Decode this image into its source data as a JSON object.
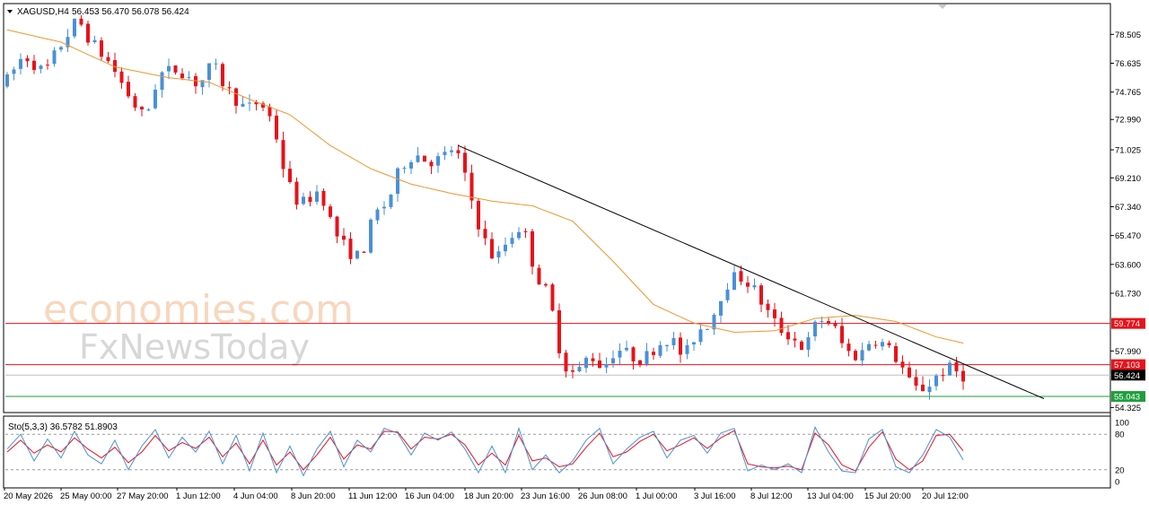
{
  "header": {
    "title": "XAGUSD,H4",
    "ohlc": "56.453 56.470 56.078 56.424"
  },
  "watermark": {
    "line1": "economies.com",
    "line2": "FxNewsToday"
  },
  "colors": {
    "bull": "#4a90d9",
    "bear": "#e8121a",
    "ma": "#f0962a",
    "trendline": "#000000",
    "resistance": "#e8121a",
    "support": "#1e9e3c",
    "stoch_k": "#4a90d9",
    "stoch_d": "#e8121a"
  },
  "chart_data": [
    {
      "type": "candlestick",
      "symbol": "XAGUSD",
      "timeframe": "H4",
      "ylim": [
        54.0,
        80.5
      ],
      "y_ticks": [
        "78.505",
        "76.635",
        "74.765",
        "72.990",
        "71.025",
        "69.210",
        "67.340",
        "65.470",
        "63.600",
        "61.730",
        "57.990",
        "54.325"
      ],
      "x_ticks": [
        "20 May 2026",
        "25 May 00:00",
        "27 May 20:00",
        "1 Jun 12:00",
        "4 Jun 04:00",
        "8 Jun 20:00",
        "11 Jun 12:00",
        "16 Jun 04:00",
        "18 Jun 20:00",
        "23 Jun 16:00",
        "26 Jun 08:00",
        "1 Jul 00:00",
        "3 Jul 16:00",
        "8 Jul 12:00",
        "13 Jul 04:00",
        "15 Jul 20:00",
        "20 Jul 12:00"
      ],
      "price_path": [
        [
          0,
          75.2
        ],
        [
          3,
          77.2
        ],
        [
          6,
          76.0
        ],
        [
          9,
          78.2
        ],
        [
          11,
          79.5
        ],
        [
          13,
          78.0
        ],
        [
          16,
          76.5
        ],
        [
          19,
          74.2
        ],
        [
          21,
          73.0
        ],
        [
          23,
          75.9
        ],
        [
          26,
          76.3
        ],
        [
          29,
          75.2
        ],
        [
          31,
          76.6
        ],
        [
          33,
          75.0
        ],
        [
          36,
          73.6
        ],
        [
          38,
          74.2
        ],
        [
          40,
          72.8
        ],
        [
          42,
          69.0
        ],
        [
          44,
          67.4
        ],
        [
          47,
          68.5
        ],
        [
          49,
          65.8
        ],
        [
          51,
          64.5
        ],
        [
          53,
          64.0
        ],
        [
          55,
          66.8
        ],
        [
          57,
          67.6
        ],
        [
          59,
          70.0
        ],
        [
          61,
          70.8
        ],
        [
          63,
          70.3
        ],
        [
          65,
          70.4
        ],
        [
          67,
          71.3
        ],
        [
          69,
          68.5
        ],
        [
          71,
          65.5
        ],
        [
          73,
          63.8
        ],
        [
          75,
          65.3
        ],
        [
          77,
          66.2
        ],
        [
          79,
          63.0
        ],
        [
          81,
          61.5
        ],
        [
          83,
          57.2
        ],
        [
          85,
          56.4
        ],
        [
          87,
          57.8
        ],
        [
          89,
          56.9
        ],
        [
          91,
          58.2
        ],
        [
          93,
          57.7
        ],
        [
          95,
          57.4
        ],
        [
          97,
          58.4
        ],
        [
          99,
          58.9
        ],
        [
          101,
          57.5
        ],
        [
          103,
          59.3
        ],
        [
          105,
          59.9
        ],
        [
          107,
          62.2
        ],
        [
          109,
          62.9
        ],
        [
          111,
          62.3
        ],
        [
          113,
          60.8
        ],
        [
          115,
          59.5
        ],
        [
          117,
          58.9
        ],
        [
          119,
          58.1
        ],
        [
          121,
          60.1
        ],
        [
          123,
          59.8
        ],
        [
          125,
          58.0
        ],
        [
          127,
          57.6
        ],
        [
          129,
          58.9
        ],
        [
          131,
          58.3
        ],
        [
          133,
          57.3
        ],
        [
          135,
          55.5
        ],
        [
          137,
          55.6
        ],
        [
          139,
          56.6
        ],
        [
          141,
          56.9
        ],
        [
          142,
          56.42
        ]
      ],
      "ma_path": [
        [
          0,
          78.8
        ],
        [
          8,
          78.0
        ],
        [
          16,
          76.4
        ],
        [
          24,
          75.7
        ],
        [
          30,
          75.4
        ],
        [
          36,
          74.3
        ],
        [
          42,
          73.3
        ],
        [
          48,
          71.3
        ],
        [
          54,
          69.8
        ],
        [
          60,
          68.8
        ],
        [
          66,
          68.2
        ],
        [
          72,
          67.7
        ],
        [
          78,
          67.4
        ],
        [
          84,
          66.4
        ],
        [
          90,
          63.8
        ],
        [
          96,
          61.0
        ],
        [
          102,
          59.8
        ],
        [
          108,
          59.2
        ],
        [
          114,
          59.3
        ],
        [
          120,
          60.1
        ],
        [
          126,
          60.3
        ],
        [
          132,
          59.9
        ],
        [
          138,
          58.9
        ],
        [
          142,
          58.5
        ]
      ],
      "trendline": {
        "from": [
          67,
          71.3
        ],
        "to": [
          154,
          54.9
        ]
      },
      "levels": [
        {
          "name": "resistance",
          "value": 59.774,
          "label": "59.774"
        },
        {
          "name": "resistance",
          "value": 57.103,
          "label": "57.103"
        },
        {
          "name": "current",
          "value": 56.424,
          "label": "56.424"
        },
        {
          "name": "support",
          "value": 55.043,
          "label": "55.043"
        }
      ]
    },
    {
      "type": "line",
      "indicator": "Sto(5,3,3)",
      "label": "Sto(5,3,3) 36.5782 51.8903",
      "ylim": [
        0,
        100
      ],
      "y_ticks": [
        "100",
        "80",
        "20",
        "0"
      ],
      "levels": [
        80,
        20
      ],
      "k_path": [
        [
          0,
          55
        ],
        [
          2,
          80
        ],
        [
          4,
          35
        ],
        [
          6,
          72
        ],
        [
          8,
          40
        ],
        [
          10,
          85
        ],
        [
          12,
          45
        ],
        [
          14,
          30
        ],
        [
          16,
          70
        ],
        [
          18,
          20
        ],
        [
          20,
          60
        ],
        [
          22,
          88
        ],
        [
          24,
          40
        ],
        [
          26,
          75
        ],
        [
          28,
          50
        ],
        [
          30,
          85
        ],
        [
          32,
          30
        ],
        [
          34,
          78
        ],
        [
          36,
          18
        ],
        [
          38,
          82
        ],
        [
          40,
          15
        ],
        [
          42,
          60
        ],
        [
          44,
          10
        ],
        [
          46,
          55
        ],
        [
          48,
          85
        ],
        [
          50,
          25
        ],
        [
          52,
          70
        ],
        [
          54,
          50
        ],
        [
          56,
          90
        ],
        [
          58,
          82
        ],
        [
          60,
          45
        ],
        [
          62,
          82
        ],
        [
          64,
          70
        ],
        [
          66,
          84
        ],
        [
          68,
          55
        ],
        [
          70,
          15
        ],
        [
          72,
          60
        ],
        [
          74,
          15
        ],
        [
          76,
          90
        ],
        [
          78,
          20
        ],
        [
          80,
          45
        ],
        [
          82,
          15
        ],
        [
          84,
          35
        ],
        [
          86,
          70
        ],
        [
          88,
          90
        ],
        [
          90,
          30
        ],
        [
          92,
          55
        ],
        [
          94,
          75
        ],
        [
          96,
          85
        ],
        [
          98,
          40
        ],
        [
          100,
          70
        ],
        [
          102,
          78
        ],
        [
          104,
          48
        ],
        [
          106,
          82
        ],
        [
          108,
          90
        ],
        [
          110,
          18
        ],
        [
          112,
          28
        ],
        [
          114,
          20
        ],
        [
          116,
          30
        ],
        [
          118,
          15
        ],
        [
          120,
          92
        ],
        [
          122,
          50
        ],
        [
          124,
          18
        ],
        [
          126,
          15
        ],
        [
          128,
          72
        ],
        [
          130,
          88
        ],
        [
          132,
          25
        ],
        [
          134,
          15
        ],
        [
          136,
          45
        ],
        [
          138,
          88
        ],
        [
          140,
          75
        ],
        [
          142,
          36.6
        ]
      ],
      "d_path": [
        [
          0,
          50
        ],
        [
          2,
          70
        ],
        [
          4,
          48
        ],
        [
          6,
          62
        ],
        [
          8,
          50
        ],
        [
          10,
          74
        ],
        [
          12,
          55
        ],
        [
          14,
          40
        ],
        [
          16,
          58
        ],
        [
          18,
          32
        ],
        [
          20,
          50
        ],
        [
          22,
          78
        ],
        [
          24,
          52
        ],
        [
          26,
          66
        ],
        [
          28,
          56
        ],
        [
          30,
          75
        ],
        [
          32,
          42
        ],
        [
          34,
          65
        ],
        [
          36,
          30
        ],
        [
          38,
          70
        ],
        [
          40,
          28
        ],
        [
          42,
          50
        ],
        [
          44,
          20
        ],
        [
          46,
          45
        ],
        [
          48,
          75
        ],
        [
          50,
          38
        ],
        [
          52,
          62
        ],
        [
          54,
          55
        ],
        [
          56,
          85
        ],
        [
          58,
          84
        ],
        [
          60,
          55
        ],
        [
          62,
          75
        ],
        [
          64,
          72
        ],
        [
          66,
          80
        ],
        [
          68,
          62
        ],
        [
          70,
          28
        ],
        [
          72,
          48
        ],
        [
          74,
          28
        ],
        [
          76,
          78
        ],
        [
          78,
          35
        ],
        [
          80,
          40
        ],
        [
          82,
          25
        ],
        [
          84,
          30
        ],
        [
          86,
          58
        ],
        [
          88,
          82
        ],
        [
          90,
          42
        ],
        [
          92,
          50
        ],
        [
          94,
          68
        ],
        [
          96,
          80
        ],
        [
          98,
          52
        ],
        [
          100,
          62
        ],
        [
          102,
          74
        ],
        [
          104,
          56
        ],
        [
          106,
          74
        ],
        [
          108,
          86
        ],
        [
          110,
          30
        ],
        [
          112,
          25
        ],
        [
          114,
          23
        ],
        [
          116,
          26
        ],
        [
          118,
          20
        ],
        [
          120,
          82
        ],
        [
          122,
          62
        ],
        [
          124,
          28
        ],
        [
          126,
          18
        ],
        [
          128,
          58
        ],
        [
          130,
          84
        ],
        [
          132,
          38
        ],
        [
          134,
          20
        ],
        [
          136,
          35
        ],
        [
          138,
          78
        ],
        [
          140,
          80
        ],
        [
          142,
          51.9
        ]
      ]
    }
  ]
}
